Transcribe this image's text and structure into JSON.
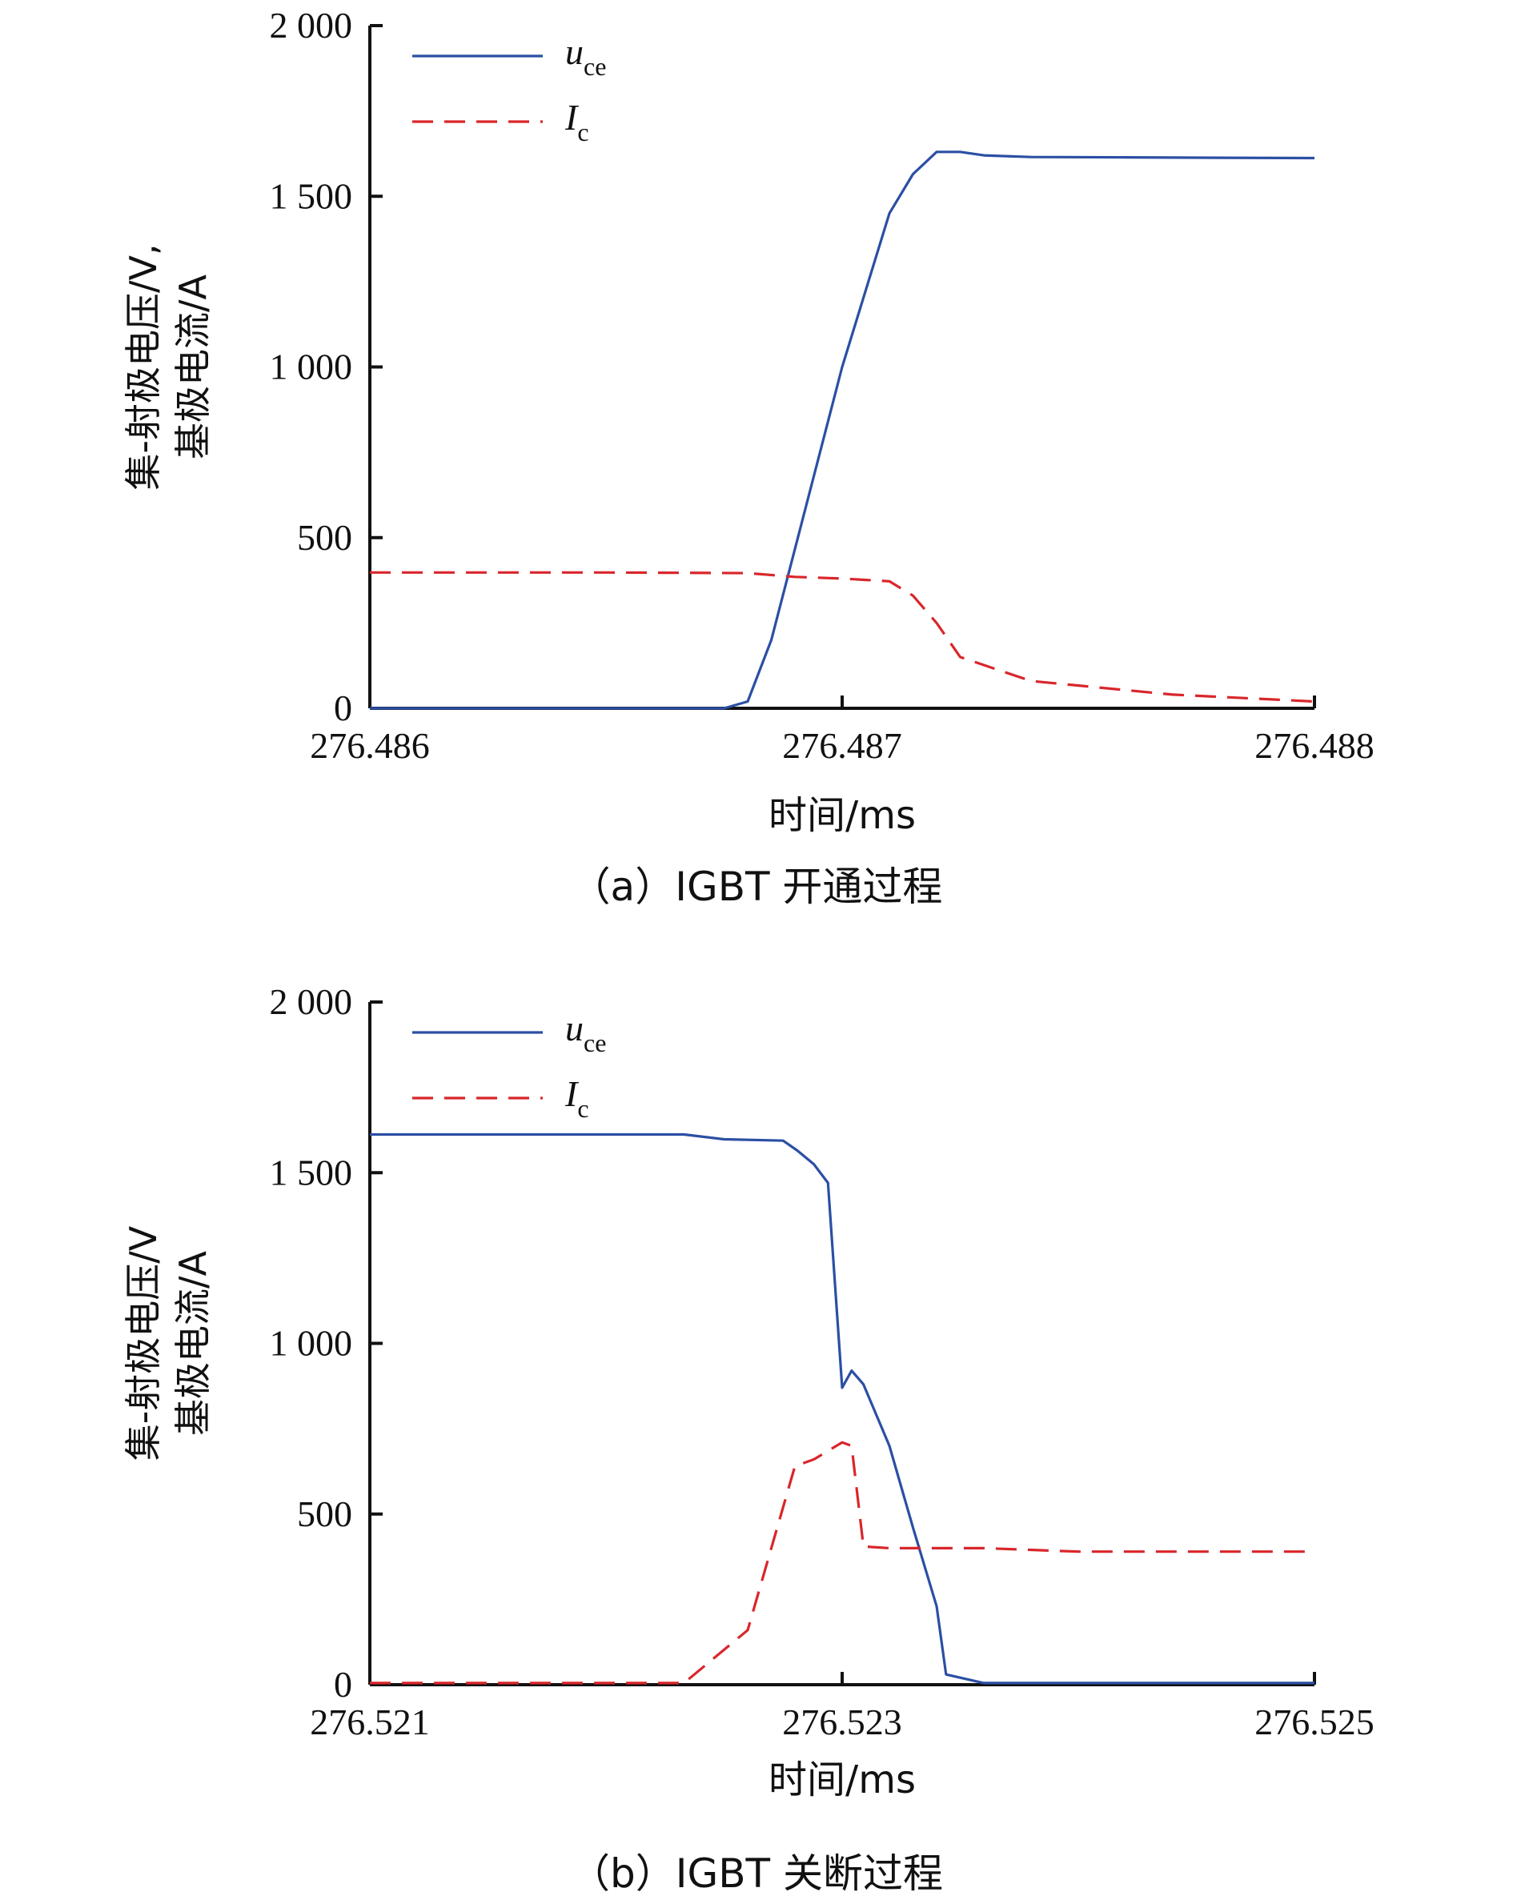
{
  "colors": {
    "uce": "#2b4fa3",
    "ic": "#d9262b",
    "axis": "#111111"
  },
  "chart_data": [
    {
      "type": "line",
      "caption": "（a）IGBT 开通过程",
      "xlabel": "时间/ms",
      "ylabel_line1": "集-射极电压/V,",
      "ylabel_line2": "基极电流/A",
      "xlim": [
        276.486,
        276.488
      ],
      "ylim": [
        0,
        2000
      ],
      "xticks": [
        276.486,
        276.487,
        276.488
      ],
      "xtick_labels": [
        "276.486",
        "276.487",
        "276.488"
      ],
      "yticks": [
        0,
        500,
        1000,
        1500,
        2000
      ],
      "ytick_labels": [
        "0",
        "500",
        "1 000",
        "1 500",
        "2 000"
      ],
      "legend_position": "top-left",
      "series": [
        {
          "name_main": "u",
          "name_sub": "ce",
          "style": "solid",
          "color_key": "uce",
          "x": [
            276.486,
            276.48675,
            276.4868,
            276.48685,
            276.487,
            276.4871,
            276.48715,
            276.4872,
            276.48725,
            276.4873,
            276.4874,
            276.4876,
            276.4878,
            276.488
          ],
          "y": [
            0,
            0,
            20,
            200,
            1000,
            1450,
            1565,
            1630,
            1630,
            1620,
            1615,
            1614,
            1613,
            1612
          ]
        },
        {
          "name_main": "I",
          "name_sub": "c",
          "style": "dashed",
          "color_key": "ic",
          "x": [
            276.486,
            276.4865,
            276.4868,
            276.4869,
            276.487,
            276.48705,
            276.4871,
            276.48715,
            276.4872,
            276.48725,
            276.4874,
            276.4877,
            276.488
          ],
          "y": [
            398,
            398,
            396,
            385,
            380,
            376,
            372,
            330,
            250,
            150,
            80,
            40,
            20
          ]
        }
      ]
    },
    {
      "type": "line",
      "caption": "（b）IGBT 关断过程",
      "xlabel": "时间/ms",
      "ylabel_line1": "集-射极电压/V",
      "ylabel_line2": "基极电流/A",
      "xlim": [
        276.521,
        276.525
      ],
      "ylim": [
        0,
        2000
      ],
      "xticks": [
        276.521,
        276.523,
        276.525
      ],
      "xtick_labels": [
        "276.521",
        "276.523",
        "276.525"
      ],
      "yticks": [
        0,
        500,
        1000,
        1500,
        2000
      ],
      "ytick_labels": [
        "0",
        "500",
        "1 000",
        "1 500",
        "2 000"
      ],
      "legend_position": "top-left",
      "series": [
        {
          "name_main": "u",
          "name_sub": "ce",
          "style": "solid",
          "color_key": "uce",
          "x": [
            276.521,
            276.52233,
            276.5225,
            276.52275,
            276.52281,
            276.52288,
            276.52294,
            276.523,
            276.52304,
            276.52309,
            276.5232,
            276.5233,
            276.5234,
            276.52344,
            276.5236,
            276.524,
            276.525
          ],
          "y": [
            1612,
            1612,
            1598,
            1594,
            1565,
            1525,
            1470,
            870,
            920,
            880,
            700,
            460,
            230,
            30,
            5,
            5,
            5
          ],
          "x_fix": null
        },
        {
          "name_main": "I",
          "name_sub": "c",
          "style": "dashed",
          "color_key": "ic",
          "x": [
            276.521,
            276.52233,
            276.5226,
            276.5228,
            276.52288,
            276.523,
            276.52304,
            276.52309,
            276.5232,
            276.5236,
            276.524,
            276.525
          ],
          "y": [
            5,
            5,
            160,
            640,
            660,
            710,
            700,
            405,
            400,
            400,
            390,
            390
          ]
        }
      ]
    }
  ]
}
